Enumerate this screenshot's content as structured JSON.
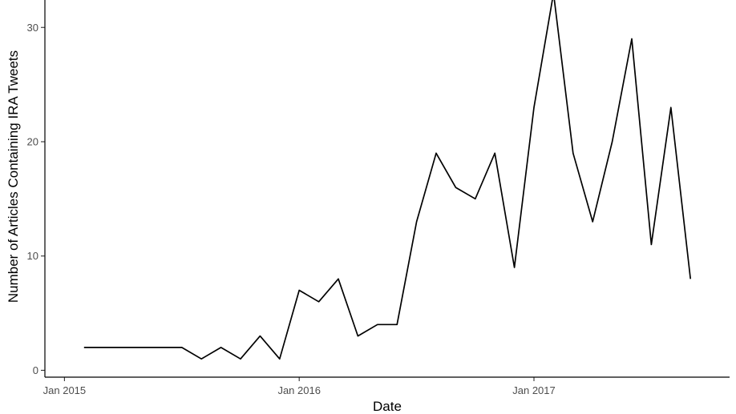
{
  "chart_data": {
    "type": "line",
    "title": "",
    "xlabel": "Date",
    "ylabel": "Number of Articles Containing IRA Tweets",
    "x_tick_labels": [
      "Jan 2015",
      "Jan 2016",
      "Jan 2017"
    ],
    "x_ticks": [
      "2015-01",
      "2016-01",
      "2017-01"
    ],
    "y_ticks": [
      0,
      10,
      20,
      30
    ],
    "ylim": [
      -0.6,
      32.4
    ],
    "xlim": [
      "2014-12",
      "2017-11"
    ],
    "grid": false,
    "legend": "none",
    "line_color": "#000000",
    "series": [
      {
        "x": [
          "2015-02",
          "2015-03",
          "2015-04",
          "2015-05",
          "2015-06",
          "2015-07",
          "2015-08",
          "2015-09",
          "2015-10",
          "2015-11",
          "2015-12",
          "2016-01",
          "2016-02",
          "2016-03",
          "2016-04",
          "2016-05",
          "2016-06",
          "2016-07",
          "2016-08",
          "2016-09",
          "2016-10",
          "2016-11",
          "2016-12",
          "2017-01",
          "2017-02",
          "2017-03",
          "2017-04",
          "2017-05",
          "2017-06",
          "2017-07",
          "2017-08",
          "2017-09"
        ],
        "values": [
          2,
          2,
          2,
          2,
          2,
          2,
          1,
          2,
          1,
          3,
          1,
          7,
          6,
          8,
          3,
          4,
          4,
          13,
          19,
          16,
          15,
          19,
          9,
          23,
          33,
          19,
          13,
          20,
          29,
          11,
          23,
          8
        ]
      }
    ]
  }
}
